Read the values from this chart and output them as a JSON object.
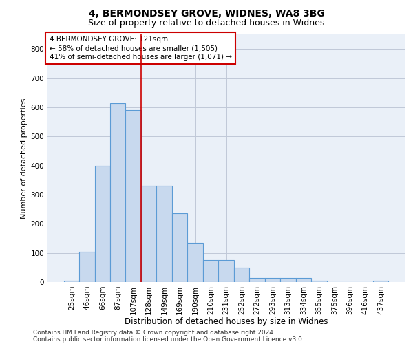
{
  "title1": "4, BERMONDSEY GROVE, WIDNES, WA8 3BG",
  "title2": "Size of property relative to detached houses in Widnes",
  "xlabel": "Distribution of detached houses by size in Widnes",
  "ylabel": "Number of detached properties",
  "categories": [
    "25sqm",
    "46sqm",
    "66sqm",
    "87sqm",
    "107sqm",
    "128sqm",
    "149sqm",
    "169sqm",
    "190sqm",
    "210sqm",
    "231sqm",
    "252sqm",
    "272sqm",
    "293sqm",
    "313sqm",
    "334sqm",
    "355sqm",
    "375sqm",
    "396sqm",
    "416sqm",
    "437sqm"
  ],
  "values": [
    5,
    105,
    400,
    615,
    590,
    330,
    330,
    235,
    135,
    75,
    75,
    50,
    15,
    15,
    13,
    13,
    5,
    0,
    0,
    0,
    5
  ],
  "bar_color": "#c8d9ee",
  "bar_edge_color": "#5b9bd5",
  "bar_edge_width": 0.8,
  "grid_color": "#c0c8d8",
  "background_color": "#eaf0f8",
  "vline_x_index": 4.5,
  "vline_color": "#cc0000",
  "annotation_line1": "4 BERMONDSEY GROVE: 121sqm",
  "annotation_line2": "← 58% of detached houses are smaller (1,505)",
  "annotation_line3": "41% of semi-detached houses are larger (1,071) →",
  "ylim": [
    0,
    850
  ],
  "yticks": [
    0,
    100,
    200,
    300,
    400,
    500,
    600,
    700,
    800
  ],
  "footer_line1": "Contains HM Land Registry data © Crown copyright and database right 2024.",
  "footer_line2": "Contains public sector information licensed under the Open Government Licence v3.0.",
  "title1_fontsize": 10,
  "title2_fontsize": 9,
  "xlabel_fontsize": 8.5,
  "ylabel_fontsize": 8,
  "tick_fontsize": 7.5,
  "annotation_fontsize": 7.5,
  "footer_fontsize": 6.5
}
